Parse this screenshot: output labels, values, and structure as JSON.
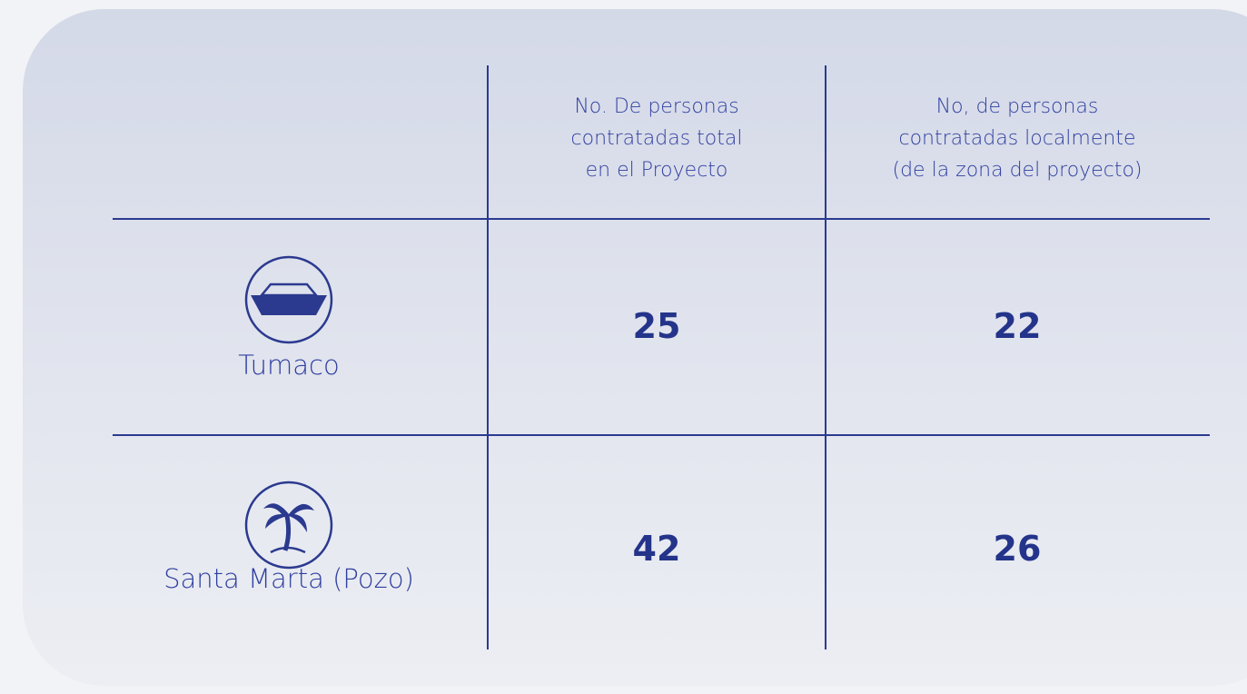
{
  "table": {
    "headers": [
      [
        "No. De personas",
        "contratadas total",
        "en el Proyecto"
      ],
      [
        "No, de personas",
        "contratadas localmente",
        "(de la zona del proyecto)"
      ]
    ],
    "rows": [
      {
        "label": "Tumaco",
        "values": [
          "25",
          "22"
        ]
      },
      {
        "label": "Santa Marta (Pozo)",
        "values": [
          "42",
          "26"
        ]
      }
    ]
  }
}
